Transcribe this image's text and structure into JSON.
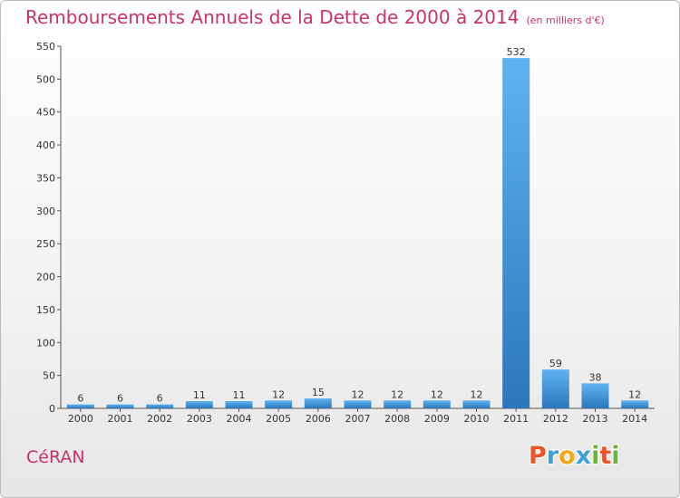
{
  "header": {
    "title": "Remboursements Annuels de la Dette de 2000 à 2014",
    "unit": "(en milliers d'€)"
  },
  "footer": {
    "town": "CéRAN",
    "logo": "Proxiti",
    "logo_colors": [
      "#e8542b",
      "#3f9fd8",
      "#f2a71b",
      "#3f9fd8",
      "#6db33f",
      "#e8542b",
      "#6db33f"
    ]
  },
  "colors": {
    "accent": "#c8336c",
    "bar_light": "#5fb3ef",
    "bar_dark": "#2c77bb"
  },
  "chart_data": {
    "type": "bar",
    "categories": [
      "2000",
      "2001",
      "2002",
      "2003",
      "2004",
      "2005",
      "2006",
      "2007",
      "2008",
      "2009",
      "2010",
      "2011",
      "2012",
      "2013",
      "2014"
    ],
    "values": [
      6,
      6,
      6,
      11,
      11,
      12,
      15,
      12,
      12,
      12,
      12,
      532,
      59,
      38,
      12
    ],
    "value_labels": [
      "6",
      "6",
      "6",
      "11",
      "11",
      "12",
      "15",
      "12",
      "12",
      "12",
      "12",
      "532",
      "59",
      "38",
      "12"
    ],
    "ylim": [
      0,
      550
    ],
    "yticks": [
      0,
      50,
      100,
      150,
      200,
      250,
      300,
      350,
      400,
      450,
      500,
      550
    ],
    "ytick_labels": [
      "0",
      "50",
      "100",
      "150",
      "200",
      "250",
      "300",
      "350",
      "400",
      "450",
      "500",
      "550"
    ],
    "grid": false,
    "legend": "none"
  }
}
